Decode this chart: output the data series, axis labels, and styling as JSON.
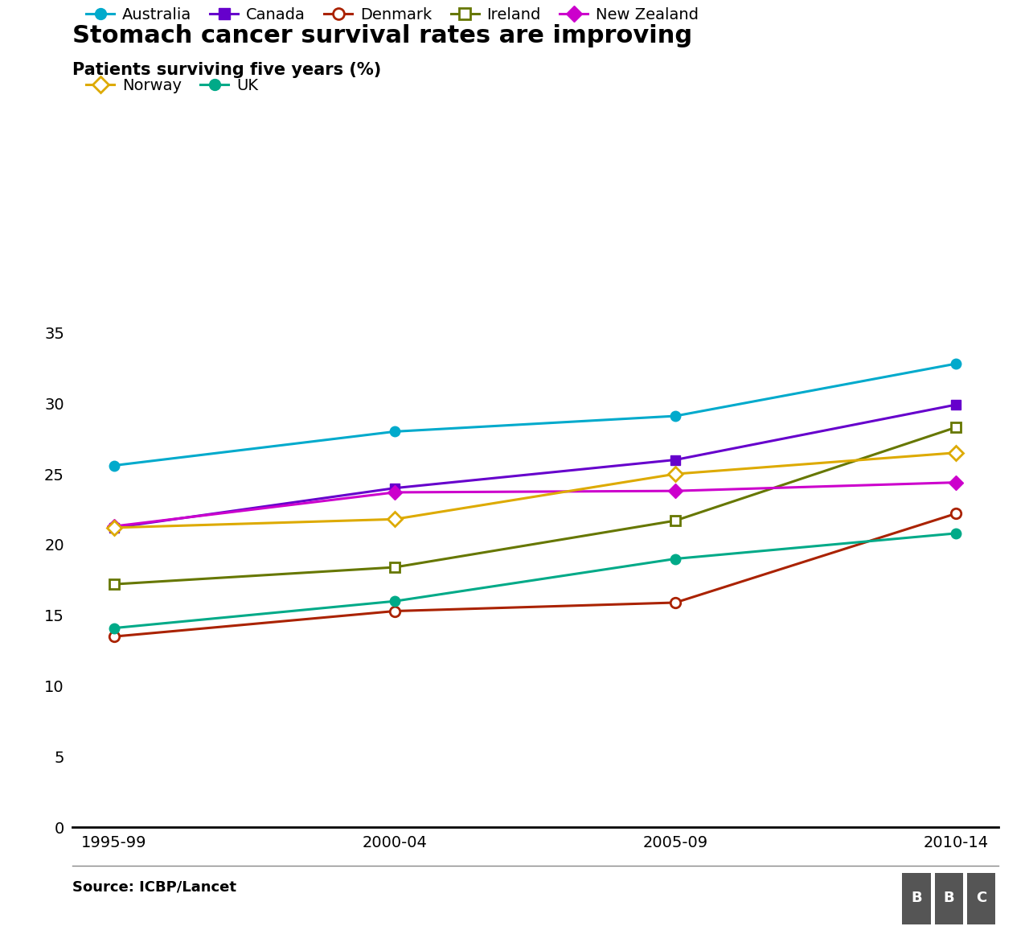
{
  "title": "Stomach cancer survival rates are improving",
  "subtitle": "Patients surviving five years (%)",
  "source": "Source: ICBP/Lancet",
  "x_labels": [
    "1995-99",
    "2000-04",
    "2005-09",
    "2010-14"
  ],
  "x_values": [
    0,
    1,
    2,
    3
  ],
  "series": [
    {
      "name": "Australia",
      "color": "#00AACC",
      "marker": "o",
      "marker_filled": true,
      "values": [
        25.6,
        28.0,
        29.1,
        32.8
      ]
    },
    {
      "name": "Canada",
      "color": "#6600CC",
      "marker": "s",
      "marker_filled": true,
      "values": [
        21.2,
        24.0,
        26.0,
        29.9
      ]
    },
    {
      "name": "Denmark",
      "color": "#AA2200",
      "marker": "o",
      "marker_filled": false,
      "values": [
        13.5,
        15.3,
        15.9,
        22.2
      ]
    },
    {
      "name": "Ireland",
      "color": "#667700",
      "marker": "s",
      "marker_filled": false,
      "values": [
        17.2,
        18.4,
        21.7,
        28.3
      ]
    },
    {
      "name": "New Zealand",
      "color": "#CC00CC",
      "marker": "D",
      "marker_filled": true,
      "values": [
        21.3,
        23.7,
        23.8,
        24.4
      ]
    },
    {
      "name": "Norway",
      "color": "#DDAA00",
      "marker": "D",
      "marker_filled": false,
      "values": [
        21.2,
        21.8,
        25.0,
        26.5
      ]
    },
    {
      "name": "UK",
      "color": "#00AA88",
      "marker": "o",
      "marker_filled": true,
      "values": [
        14.1,
        16.0,
        19.0,
        20.8
      ]
    }
  ],
  "ylim": [
    0,
    37
  ],
  "yticks": [
    0,
    5,
    10,
    15,
    20,
    25,
    30,
    35
  ],
  "background_color": "#ffffff",
  "title_fontsize": 22,
  "subtitle_fontsize": 15,
  "tick_fontsize": 14,
  "legend_fontsize": 14,
  "source_fontsize": 13,
  "linewidth": 2.2,
  "markersize": 9
}
